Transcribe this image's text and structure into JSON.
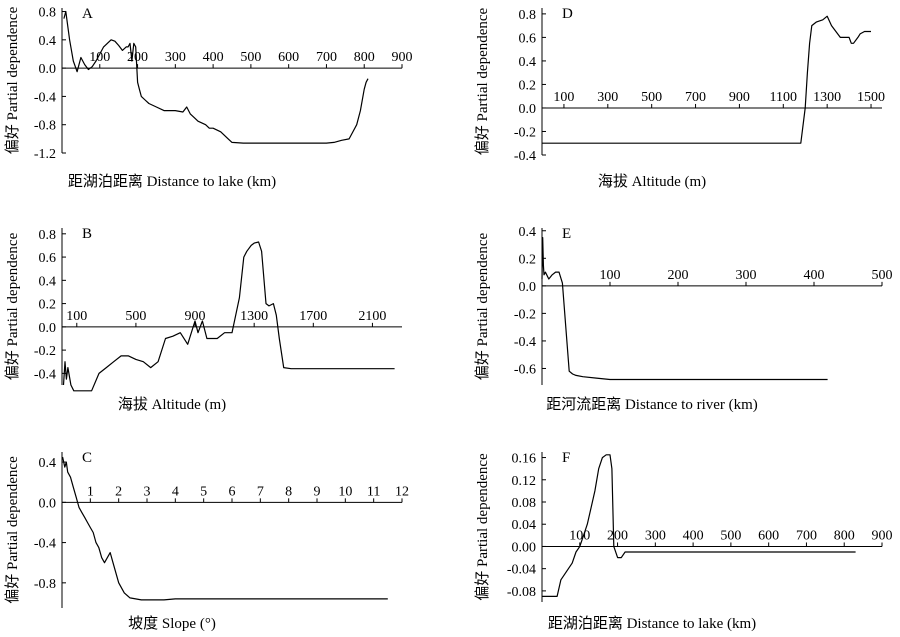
{
  "figure": {
    "background": "#ffffff",
    "line_color": "#000000"
  },
  "chart_data": [
    {
      "panel": "A",
      "type": "line",
      "xlabel": "距湖泊距离 Distance to lake (km)",
      "ylabel": "偏好 Partial dependence",
      "xlim": [
        0,
        900
      ],
      "ylim": [
        -1.2,
        0.85
      ],
      "xticks": [
        100,
        200,
        300,
        400,
        500,
        600,
        700,
        800,
        900
      ],
      "yticks": [
        -1.2,
        -0.8,
        -0.4,
        0.0,
        0.4,
        0.8
      ],
      "xtick_labels": [
        "100",
        "200",
        "300",
        "400",
        "500",
        "600",
        "700",
        "800",
        "900"
      ],
      "ytick_labels": [
        "-1.2",
        "-0.8",
        "-0.4",
        "0.0",
        "0.4",
        "0.8"
      ],
      "series": [
        {
          "x": [
            5,
            10,
            15,
            20,
            30,
            40,
            50,
            60,
            70,
            80,
            90,
            100,
            110,
            120,
            130,
            140,
            150,
            160,
            170,
            175,
            180,
            185,
            190,
            195,
            200,
            205,
            210,
            220,
            230,
            250,
            270,
            300,
            320,
            330,
            340,
            350,
            360,
            380,
            390,
            400,
            420,
            430,
            440,
            450,
            480,
            500,
            550,
            600,
            650,
            700,
            720,
            740,
            760,
            780,
            790,
            800,
            805,
            810
          ],
          "y": [
            0.7,
            0.8,
            0.6,
            0.4,
            0.1,
            -0.05,
            0.15,
            0.05,
            -0.02,
            0.02,
            0.1,
            0.2,
            0.3,
            0.35,
            0.4,
            0.38,
            0.32,
            0.25,
            0.3,
            0.3,
            0.35,
            0.1,
            0.35,
            0.3,
            -0.2,
            -0.3,
            -0.4,
            -0.45,
            -0.5,
            -0.55,
            -0.6,
            -0.6,
            -0.62,
            -0.55,
            -0.65,
            -0.7,
            -0.75,
            -0.8,
            -0.85,
            -0.85,
            -0.9,
            -0.95,
            -1.0,
            -1.05,
            -1.06,
            -1.06,
            -1.06,
            -1.06,
            -1.06,
            -1.06,
            -1.05,
            -1.02,
            -1.0,
            -0.8,
            -0.6,
            -0.3,
            -0.2,
            -0.15
          ]
        }
      ]
    },
    {
      "panel": "B",
      "type": "line",
      "xlabel": "海拔 Altitude (m)",
      "ylabel": "偏好 Partial dependence",
      "xlim": [
        0,
        2300
      ],
      "ylim": [
        -0.5,
        0.85
      ],
      "xticks": [
        100,
        500,
        900,
        1300,
        1700,
        2100
      ],
      "yticks": [
        -0.4,
        -0.2,
        0.0,
        0.2,
        0.4,
        0.6,
        0.8
      ],
      "xtick_labels": [
        "100",
        "500",
        "900",
        "1300",
        "1700",
        "2100"
      ],
      "ytick_labels": [
        "-0.4",
        "-0.2",
        "0.0",
        "0.2",
        "0.4",
        "0.6",
        "0.8"
      ],
      "series": [
        {
          "x": [
            10,
            20,
            30,
            40,
            60,
            80,
            100,
            150,
            200,
            250,
            300,
            350,
            400,
            450,
            500,
            550,
            600,
            650,
            700,
            750,
            800,
            850,
            900,
            920,
            950,
            980,
            1000,
            1050,
            1100,
            1150,
            1200,
            1230,
            1250,
            1280,
            1300,
            1330,
            1350,
            1380,
            1400,
            1430,
            1450,
            1470,
            1500,
            1550,
            1600,
            1700,
            1800,
            1900,
            2000,
            2100,
            2200,
            2250
          ],
          "y": [
            -0.5,
            -0.3,
            -0.45,
            -0.35,
            -0.5,
            -0.55,
            -0.55,
            -0.55,
            -0.55,
            -0.4,
            -0.35,
            -0.3,
            -0.25,
            -0.25,
            -0.28,
            -0.3,
            -0.35,
            -0.3,
            -0.1,
            -0.08,
            -0.05,
            -0.15,
            0.05,
            -0.05,
            0.05,
            -0.1,
            -0.1,
            -0.1,
            -0.05,
            -0.05,
            0.25,
            0.6,
            0.65,
            0.7,
            0.72,
            0.73,
            0.65,
            0.2,
            0.18,
            0.2,
            0.1,
            -0.1,
            -0.35,
            -0.36,
            -0.36,
            -0.36,
            -0.36,
            -0.36,
            -0.36,
            -0.36,
            -0.36,
            -0.36
          ]
        }
      ]
    },
    {
      "panel": "C",
      "type": "line",
      "xlabel": "坡度 Slope (°)",
      "ylabel": "偏好 Partial dependence",
      "xlim": [
        0,
        12
      ],
      "ylim": [
        -1.05,
        0.5
      ],
      "xticks": [
        1,
        2,
        3,
        4,
        5,
        6,
        7,
        8,
        9,
        10,
        11,
        12
      ],
      "yticks": [
        -0.8,
        -0.4,
        0.0,
        0.4
      ],
      "xtick_labels": [
        "1",
        "2",
        "3",
        "4",
        "5",
        "6",
        "7",
        "8",
        "9",
        "10",
        "11",
        "12"
      ],
      "ytick_labels": [
        "-0.8",
        "-0.4",
        "0.0",
        "0.4"
      ],
      "series": [
        {
          "x": [
            0.02,
            0.1,
            0.15,
            0.2,
            0.3,
            0.4,
            0.5,
            0.6,
            0.7,
            0.8,
            0.9,
            1.0,
            1.1,
            1.2,
            1.3,
            1.4,
            1.5,
            1.6,
            1.7,
            1.8,
            2.0,
            2.2,
            2.4,
            2.8,
            3.2,
            3.6,
            4.0,
            5.0,
            6.0,
            7.0,
            8.0,
            9.0,
            10.0,
            11.0,
            11.5
          ],
          "y": [
            0.45,
            0.35,
            0.4,
            0.3,
            0.25,
            0.15,
            0.05,
            -0.05,
            -0.1,
            -0.15,
            -0.2,
            -0.25,
            -0.3,
            -0.4,
            -0.45,
            -0.55,
            -0.6,
            -0.55,
            -0.5,
            -0.6,
            -0.8,
            -0.9,
            -0.95,
            -0.97,
            -0.97,
            -0.97,
            -0.96,
            -0.96,
            -0.96,
            -0.96,
            -0.96,
            -0.96,
            -0.96,
            -0.96,
            -0.96
          ]
        }
      ]
    },
    {
      "panel": "D",
      "type": "line",
      "xlabel": "海拔 Altitude (m)",
      "ylabel": "偏好 Partial dependence",
      "xlim": [
        0,
        1550
      ],
      "ylim": [
        -0.4,
        0.85
      ],
      "xticks": [
        100,
        300,
        500,
        700,
        900,
        1100,
        1300,
        1500
      ],
      "yticks": [
        -0.4,
        -0.2,
        0.0,
        0.2,
        0.4,
        0.6,
        0.8
      ],
      "xtick_labels": [
        "100",
        "300",
        "500",
        "700",
        "900",
        "1100",
        "1300",
        "1500"
      ],
      "ytick_labels": [
        "-0.4",
        "-0.2",
        "0.0",
        "0.2",
        "0.4",
        "0.6",
        "0.8"
      ],
      "series": [
        {
          "x": [
            0,
            200,
            400,
            600,
            800,
            1000,
            1150,
            1180,
            1200,
            1210,
            1220,
            1230,
            1250,
            1280,
            1300,
            1320,
            1340,
            1360,
            1380,
            1400,
            1410,
            1420,
            1440,
            1450,
            1470,
            1500
          ],
          "y": [
            -0.3,
            -0.3,
            -0.3,
            -0.3,
            -0.3,
            -0.3,
            -0.3,
            -0.3,
            0.0,
            0.3,
            0.55,
            0.7,
            0.73,
            0.75,
            0.78,
            0.7,
            0.65,
            0.6,
            0.6,
            0.6,
            0.55,
            0.55,
            0.6,
            0.63,
            0.65,
            0.65
          ]
        }
      ]
    },
    {
      "panel": "E",
      "type": "line",
      "xlabel": "距河流距离 Distance to river (km)",
      "ylabel": "偏好 Partial dependence",
      "xlim": [
        0,
        500
      ],
      "ylim": [
        -0.72,
        0.42
      ],
      "xticks": [
        100,
        200,
        300,
        400,
        500
      ],
      "yticks": [
        -0.6,
        -0.4,
        -0.2,
        0.0,
        0.2,
        0.4
      ],
      "xtick_labels": [
        "100",
        "200",
        "300",
        "400",
        "500"
      ],
      "ytick_labels": [
        "-0.6",
        "-0.4",
        "-0.2",
        "0.0",
        "0.2",
        "0.4"
      ],
      "series": [
        {
          "x": [
            0,
            1,
            2,
            3,
            5,
            8,
            10,
            15,
            20,
            25,
            30,
            35,
            40,
            45,
            50,
            60,
            80,
            100,
            150,
            200,
            300,
            400,
            420
          ],
          "y": [
            0.05,
            0.35,
            0.15,
            0.08,
            0.1,
            0.07,
            0.05,
            0.08,
            0.1,
            0.1,
            0.02,
            -0.3,
            -0.62,
            -0.64,
            -0.65,
            -0.66,
            -0.67,
            -0.68,
            -0.68,
            -0.68,
            -0.68,
            -0.68,
            -0.68
          ]
        }
      ]
    },
    {
      "panel": "F",
      "type": "line",
      "xlabel": "距湖泊距离 Distance to lake (km)",
      "ylabel": "偏好 Partial dependence",
      "xlim": [
        0,
        900
      ],
      "ylim": [
        -0.1,
        0.17
      ],
      "xticks": [
        100,
        200,
        300,
        400,
        500,
        600,
        700,
        800,
        900
      ],
      "yticks": [
        -0.08,
        -0.04,
        0.0,
        0.04,
        0.08,
        0.12,
        0.16
      ],
      "xtick_labels": [
        "100",
        "200",
        "300",
        "400",
        "500",
        "600",
        "700",
        "800",
        "900"
      ],
      "ytick_labels": [
        "-0.08",
        "-0.04",
        "0.00",
        "0.04",
        "0.08",
        "0.12",
        "0.16"
      ],
      "series": [
        {
          "x": [
            0,
            10,
            20,
            30,
            40,
            50,
            60,
            70,
            80,
            90,
            100,
            110,
            120,
            130,
            140,
            150,
            160,
            170,
            180,
            185,
            190,
            200,
            210,
            220,
            300,
            400,
            500,
            600,
            700,
            800,
            830
          ],
          "y": [
            -0.09,
            -0.09,
            -0.09,
            -0.09,
            -0.09,
            -0.06,
            -0.05,
            -0.04,
            -0.03,
            -0.01,
            0.0,
            0.02,
            0.04,
            0.07,
            0.1,
            0.14,
            0.16,
            0.165,
            0.165,
            0.14,
            0.0,
            -0.02,
            -0.02,
            -0.01,
            -0.01,
            -0.01,
            -0.01,
            -0.01,
            -0.01,
            -0.01,
            -0.01
          ]
        }
      ]
    }
  ]
}
